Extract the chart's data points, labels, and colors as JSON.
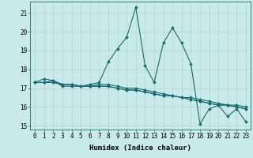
{
  "xlabel": "Humidex (Indice chaleur)",
  "ylabel": "",
  "background_color": "#c8eaea",
  "grid_color": "#b8d8d8",
  "line_color": "#1a6b6b",
  "xlim": [
    -0.5,
    23.5
  ],
  "ylim": [
    14.8,
    21.6
  ],
  "yticks": [
    15,
    16,
    17,
    18,
    19,
    20,
    21
  ],
  "xticks": [
    0,
    1,
    2,
    3,
    4,
    5,
    6,
    7,
    8,
    9,
    10,
    11,
    12,
    13,
    14,
    15,
    16,
    17,
    18,
    19,
    20,
    21,
    22,
    23
  ],
  "series": [
    [
      17.3,
      17.5,
      17.4,
      17.1,
      17.1,
      17.1,
      17.2,
      17.3,
      18.4,
      19.1,
      19.7,
      21.3,
      18.2,
      17.3,
      19.4,
      20.2,
      19.4,
      18.3,
      15.1,
      15.9,
      16.1,
      15.5,
      15.9,
      15.2
    ],
    [
      17.3,
      17.3,
      17.3,
      17.2,
      17.2,
      17.1,
      17.1,
      17.1,
      17.1,
      17.0,
      16.9,
      16.9,
      16.8,
      16.7,
      16.6,
      16.6,
      16.5,
      16.4,
      16.3,
      16.2,
      16.1,
      16.1,
      16.0,
      15.9
    ],
    [
      17.3,
      17.3,
      17.3,
      17.2,
      17.2,
      17.1,
      17.1,
      17.1,
      17.1,
      17.0,
      16.9,
      16.9,
      16.8,
      16.7,
      16.6,
      16.6,
      16.5,
      16.4,
      16.3,
      16.2,
      16.1,
      16.1,
      16.0,
      15.9
    ],
    [
      17.3,
      17.3,
      17.4,
      17.2,
      17.2,
      17.1,
      17.1,
      17.2,
      17.2,
      17.1,
      17.0,
      17.0,
      16.9,
      16.8,
      16.7,
      16.6,
      16.5,
      16.5,
      16.4,
      16.3,
      16.2,
      16.1,
      16.1,
      16.0
    ]
  ],
  "title_fontsize": 6.5,
  "axis_fontsize": 6.5,
  "tick_fontsize": 5.5
}
